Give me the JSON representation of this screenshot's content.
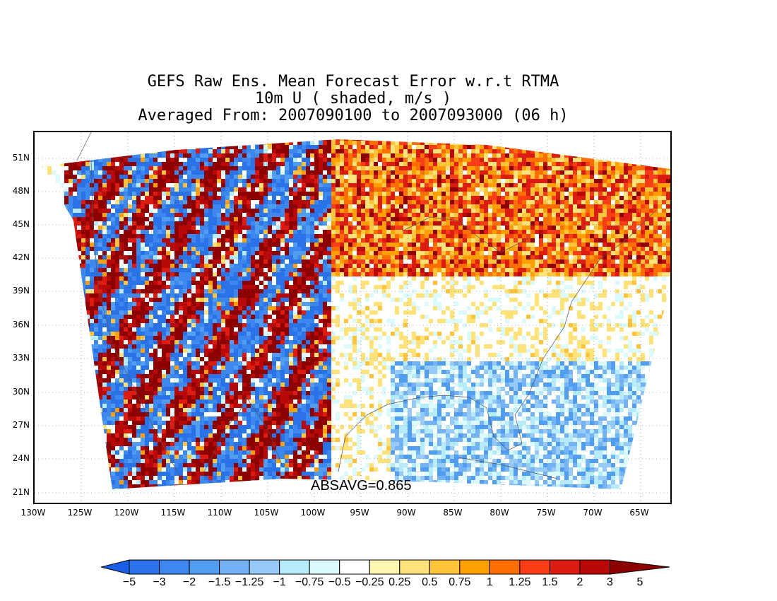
{
  "title": {
    "line1": "GEFS Raw Ens. Mean Forecast Error w.r.t RTMA",
    "line2": "10m U ( shaded, m/s )",
    "line3": "Averaged From: 2007090100 to 2007093000 (06 h)"
  },
  "map": {
    "lat_labels": [
      "51N",
      "48N",
      "45N",
      "42N",
      "39N",
      "36N",
      "33N",
      "30N",
      "27N",
      "24N",
      "21N"
    ],
    "lon_labels": [
      "130W",
      "125W",
      "120W",
      "115W",
      "110W",
      "105W",
      "100W",
      "95W",
      "90W",
      "85W",
      "80W",
      "75W",
      "70W",
      "65W"
    ],
    "absavg": "ABSAVG=0.865"
  },
  "colorbar": {
    "colors": [
      "#1a5ee6",
      "#2a72e8",
      "#3c88ee",
      "#519df2",
      "#72b2f5",
      "#98caf8",
      "#b6ecfa",
      "#dcfafe",
      "#ffffff",
      "#fff6b0",
      "#ffe27a",
      "#ffc43c",
      "#ff9f00",
      "#ff6e00",
      "#f73e16",
      "#dc1c10",
      "#b80808",
      "#8c0000"
    ],
    "labels": [
      "−5",
      "−3",
      "−2",
      "−1.5",
      "−1.25",
      "−1",
      "−0.75",
      "−0.5",
      "−0.25",
      "0.25",
      "0.5",
      "0.75",
      "1",
      "1.25",
      "1.5",
      "2",
      "3",
      "5"
    ]
  }
}
